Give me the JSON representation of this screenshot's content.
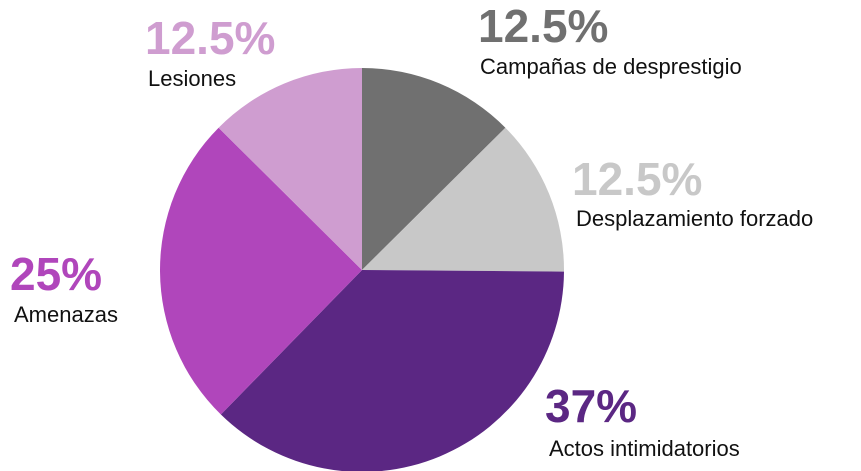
{
  "chart_data": {
    "type": "pie",
    "categories": [
      "Campañas de desprestigio",
      "Desplazamiento forzado",
      "Actos intimidatorios",
      "Amenazas",
      "Lesiones"
    ],
    "values": [
      12.5,
      12.5,
      37,
      25,
      12.5
    ],
    "value_labels": [
      "12.5%",
      "12.5%",
      "37%",
      "25%",
      "12.5%"
    ],
    "colors": [
      "#707070",
      "#c8c8c8",
      "#5b2783",
      "#b046bb",
      "#cf9dd0"
    ]
  }
}
